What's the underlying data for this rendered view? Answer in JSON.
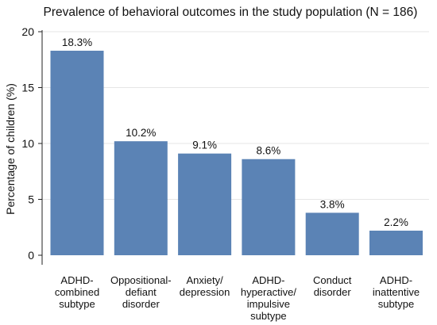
{
  "chart_data": {
    "type": "bar",
    "title": "Prevalence of behavioral outcomes in the study population (N = 186)",
    "xlabel": "",
    "ylabel": "Percentage of children (%)",
    "ylim": [
      0,
      20
    ],
    "yticks": [
      0,
      5,
      10,
      15,
      20
    ],
    "grid": true,
    "categories": [
      [
        "ADHD-",
        "combined",
        "subtype"
      ],
      [
        "Oppositional-",
        "defiant",
        "disorder"
      ],
      [
        "Anxiety/",
        "depression"
      ],
      [
        "ADHD-",
        "hyperactive/",
        "impulsive",
        "subtype"
      ],
      [
        "Conduct",
        "disorder"
      ],
      [
        "ADHD-",
        "inattentive",
        "subtype"
      ]
    ],
    "values": [
      18.3,
      10.2,
      9.1,
      8.6,
      3.8,
      2.2
    ],
    "data_labels": [
      "18.3%",
      "10.2%",
      "9.1%",
      "8.6%",
      "3.8%",
      "2.2%"
    ],
    "colors": {
      "bar": "#5b83b5",
      "grid": "#e6e6e6",
      "axis": "#222222"
    }
  }
}
